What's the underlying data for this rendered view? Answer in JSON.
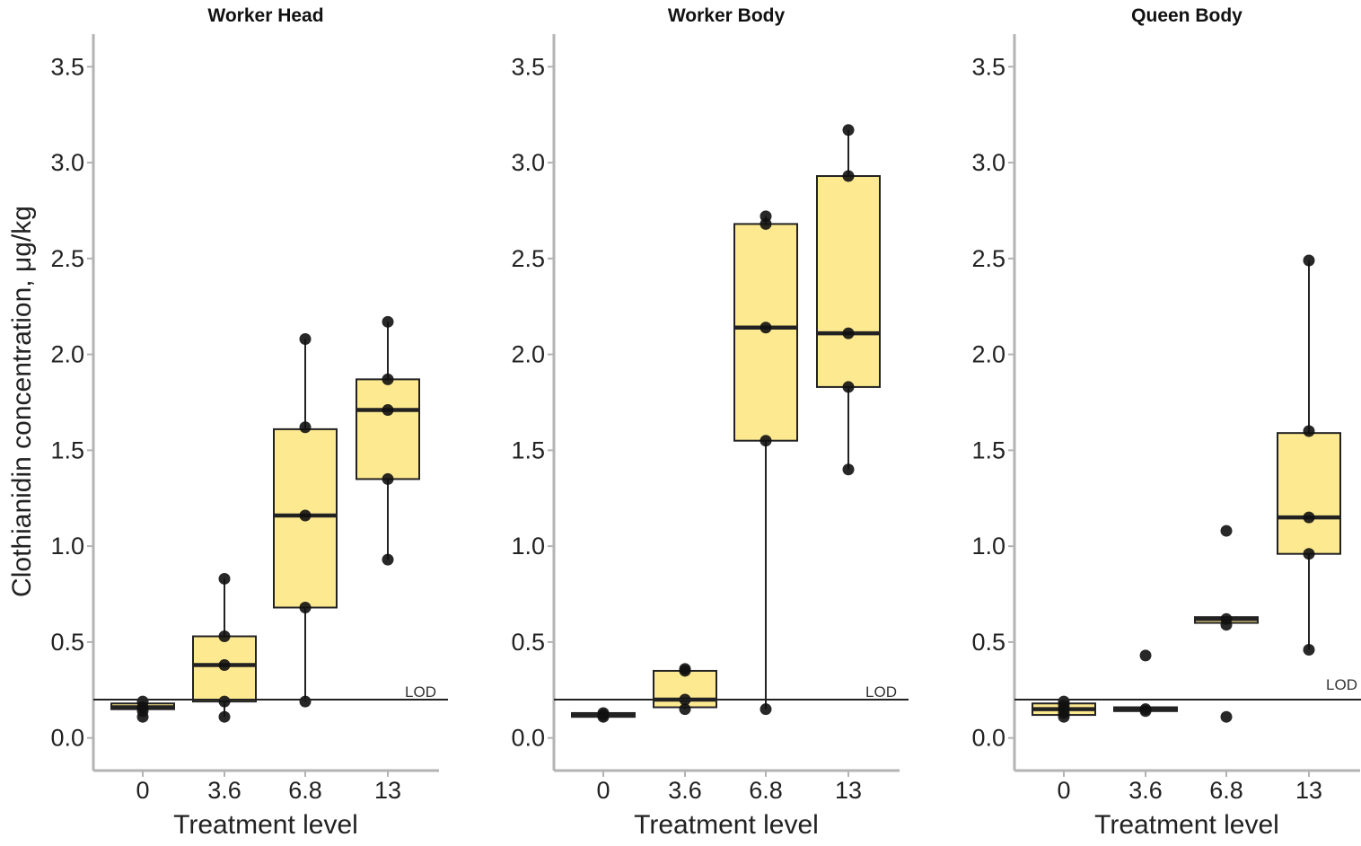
{
  "chart_data": {
    "type": "boxplot",
    "ylabel": "Clothianidin concentration, μg/kg",
    "xlabel": "Treatment level",
    "categories": [
      "0",
      "3.6",
      "6.8",
      "13"
    ],
    "yticks": [
      "0.0",
      "0.5",
      "1.0",
      "1.5",
      "2.0",
      "2.5",
      "3.0",
      "3.5"
    ],
    "ylim": [
      -0.17,
      3.67
    ],
    "lod": {
      "label": "LOD",
      "value": 0.2
    },
    "colors": {
      "box_fill": "#fde98f",
      "box_stroke": "#222222",
      "point": "#111111",
      "axis": "#b3b3b3"
    },
    "panels": [
      {
        "title": "Worker Head",
        "boxes": [
          {
            "category": "0",
            "q1": 0.15,
            "median": 0.16,
            "q3": 0.18,
            "whisker_low": 0.15,
            "whisker_high": 0.18,
            "points": [
              0.11,
              0.14,
              0.16,
              0.19
            ]
          },
          {
            "category": "3.6",
            "q1": 0.19,
            "median": 0.38,
            "q3": 0.53,
            "whisker_low": 0.11,
            "whisker_high": 0.83,
            "points": [
              0.11,
              0.19,
              0.38,
              0.53,
              0.83
            ]
          },
          {
            "category": "6.8",
            "q1": 0.68,
            "median": 1.16,
            "q3": 1.61,
            "whisker_low": 0.19,
            "whisker_high": 2.08,
            "points": [
              0.19,
              0.68,
              1.16,
              1.62,
              2.08
            ]
          },
          {
            "category": "13",
            "q1": 1.35,
            "median": 1.71,
            "q3": 1.87,
            "whisker_low": 0.93,
            "whisker_high": 2.17,
            "points": [
              0.93,
              1.35,
              1.71,
              1.87,
              2.17
            ]
          }
        ]
      },
      {
        "title": "Worker Body",
        "boxes": [
          {
            "category": "0",
            "q1": 0.11,
            "median": 0.12,
            "q3": 0.13,
            "whisker_low": 0.11,
            "whisker_high": 0.13,
            "points": [
              0.11,
              0.12,
              0.13
            ]
          },
          {
            "category": "3.6",
            "q1": 0.16,
            "median": 0.2,
            "q3": 0.35,
            "whisker_low": 0.15,
            "whisker_high": 0.36,
            "points": [
              0.15,
              0.2,
              0.35,
              0.36
            ]
          },
          {
            "category": "6.8",
            "q1": 1.55,
            "median": 2.14,
            "q3": 2.68,
            "whisker_low": 0.15,
            "whisker_high": 2.72,
            "points": [
              0.15,
              1.55,
              2.14,
              2.68,
              2.72
            ]
          },
          {
            "category": "13",
            "q1": 1.83,
            "median": 2.11,
            "q3": 2.93,
            "whisker_low": 1.4,
            "whisker_high": 3.17,
            "points": [
              1.4,
              1.83,
              2.11,
              2.93,
              3.17
            ]
          }
        ]
      },
      {
        "title": "Queen Body",
        "boxes": [
          {
            "category": "0",
            "q1": 0.12,
            "median": 0.15,
            "q3": 0.18,
            "whisker_low": 0.11,
            "whisker_high": 0.19,
            "points": [
              0.11,
              0.13,
              0.15,
              0.17,
              0.19
            ]
          },
          {
            "category": "3.6",
            "q1": 0.14,
            "median": 0.15,
            "q3": 0.16,
            "whisker_low": 0.14,
            "whisker_high": 0.16,
            "points": [
              0.14,
              0.15,
              0.43
            ]
          },
          {
            "category": "6.8",
            "q1": 0.6,
            "median": 0.62,
            "q3": 0.63,
            "whisker_low": 0.6,
            "whisker_high": 0.63,
            "points": [
              0.11,
              0.59,
              0.62,
              1.08
            ]
          },
          {
            "category": "13",
            "q1": 0.96,
            "median": 1.15,
            "q3": 1.59,
            "whisker_low": 0.46,
            "whisker_high": 2.49,
            "points": [
              0.46,
              0.96,
              1.15,
              1.6,
              2.49
            ]
          }
        ]
      }
    ]
  }
}
